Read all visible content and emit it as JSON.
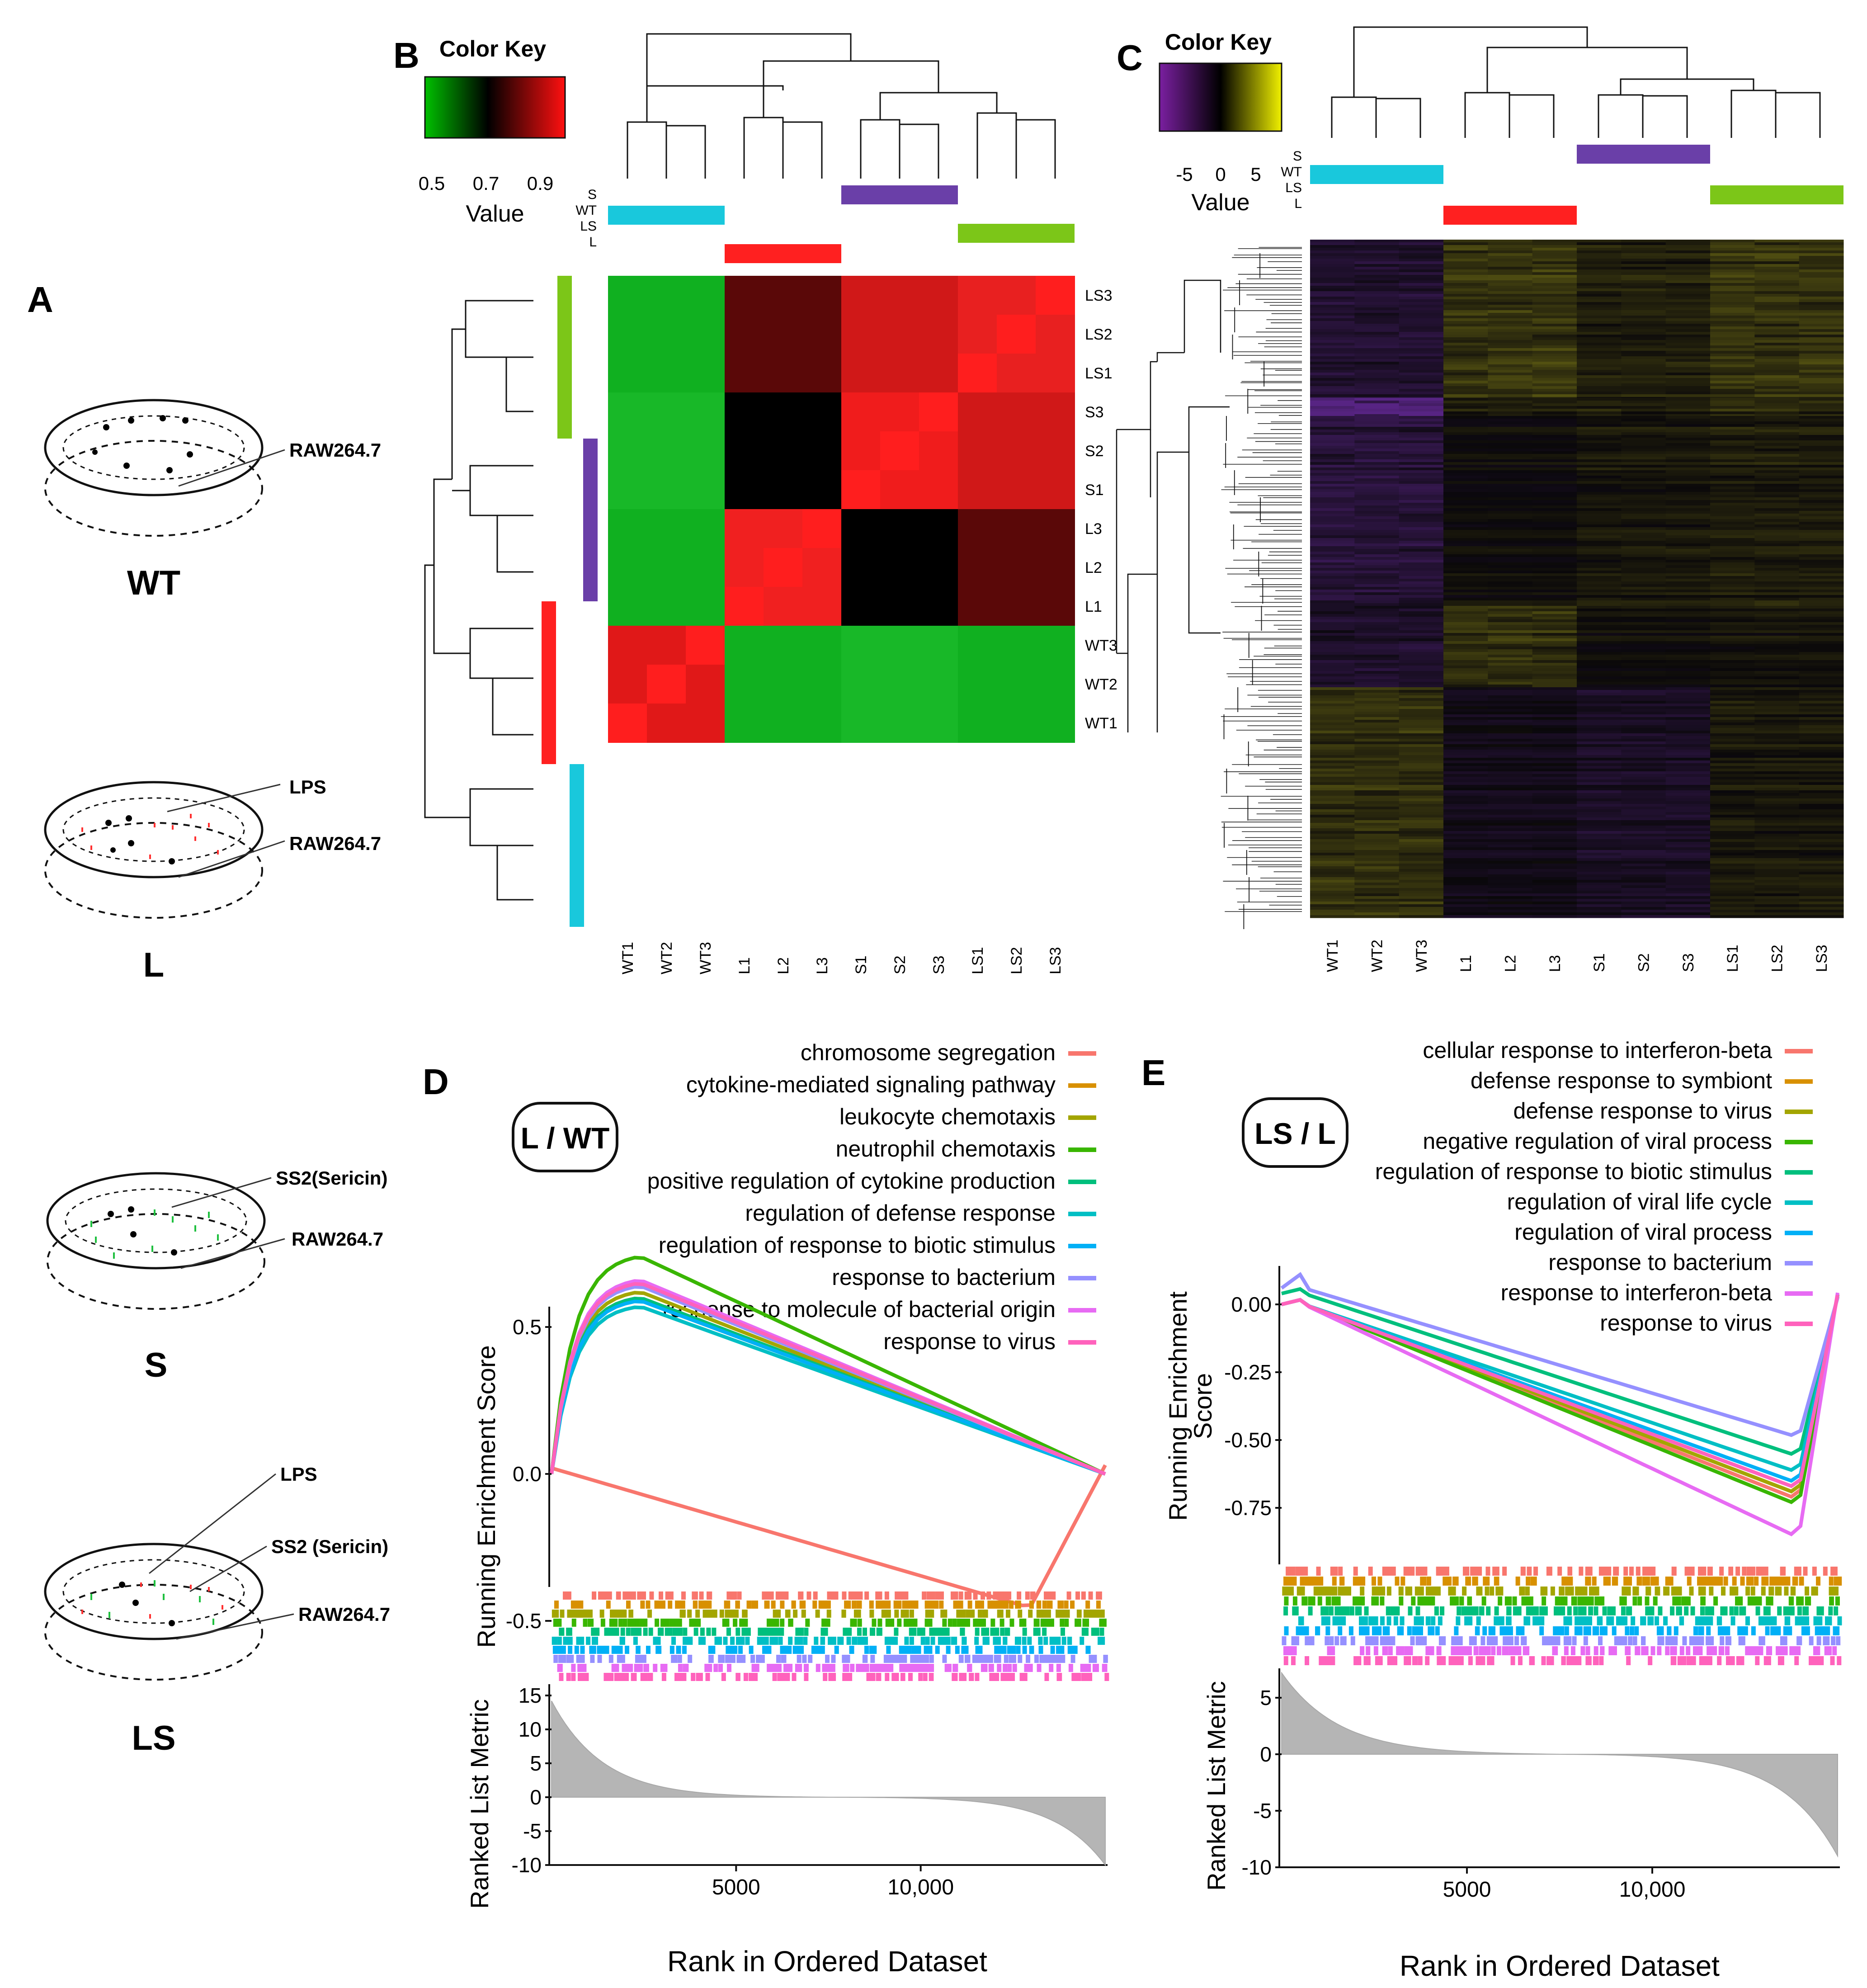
{
  "panels": {
    "A": {
      "label": "A",
      "dishes": [
        {
          "cond": "WT",
          "labels": [
            "RAW264.7"
          ]
        },
        {
          "cond": "L",
          "labels": [
            "LPS",
            "RAW264.7"
          ]
        },
        {
          "cond": "S",
          "labels": [
            "SS2(Sericin)",
            "RAW264.7"
          ]
        },
        {
          "cond": "LS",
          "labels": [
            "LPS",
            "SS2 (Sericin)",
            "RAW264.7"
          ]
        }
      ]
    },
    "B": {
      "label": "B",
      "key_title": "Color Key",
      "key_ticks": [
        "0.5",
        "0.7",
        "0.9"
      ],
      "key_value_label": "Value",
      "group_labels": [
        "S",
        "WT",
        "LS",
        "L"
      ],
      "samples": [
        "WT1",
        "WT2",
        "WT3",
        "L1",
        "L2",
        "L3",
        "S1",
        "S2",
        "S3",
        "LS1",
        "LS2",
        "LS3"
      ]
    },
    "C": {
      "label": "C",
      "key_title": "Color Key",
      "key_ticks": [
        "-5",
        "0",
        "5"
      ],
      "key_value_label": "Value",
      "group_labels": [
        "S",
        "WT",
        "LS",
        "L"
      ],
      "samples": [
        "WT1",
        "WT2",
        "WT3",
        "L1",
        "L2",
        "L3",
        "S1",
        "S2",
        "S3",
        "LS1",
        "LS2",
        "LS3"
      ]
    },
    "D": {
      "label": "D",
      "comparison": "L / WT",
      "y_label_es": "Running Enrichment Score",
      "y_label_rank": "Ranked List Metric",
      "x_label": "Rank in Ordered Dataset",
      "es_ticks": [
        "0.5",
        "0.0",
        "-0.5"
      ],
      "rank_ticks": [
        "15",
        "10",
        "5",
        "0",
        "-5",
        "-10"
      ],
      "x_ticks": [
        "5000",
        "10,000"
      ],
      "legend": [
        {
          "name": "chromosome segregation",
          "color": "#f8766d"
        },
        {
          "name": "cytokine-mediated signaling pathway",
          "color": "#d89000"
        },
        {
          "name": "leukocyte chemotaxis",
          "color": "#a3a500"
        },
        {
          "name": "neutrophil chemotaxis",
          "color": "#39b600"
        },
        {
          "name": "positive regulation of cytokine production",
          "color": "#00bf7d"
        },
        {
          "name": "regulation of defense response",
          "color": "#00bfc4"
        },
        {
          "name": "regulation of response to biotic stimulus",
          "color": "#00b0f6"
        },
        {
          "name": "response to bacterium",
          "color": "#9590ff"
        },
        {
          "name": "response to molecule of bacterial origin",
          "color": "#e76bf3"
        },
        {
          "name": "response to virus",
          "color": "#ff62bc"
        }
      ]
    },
    "E": {
      "label": "E",
      "comparison": "LS / L",
      "y_label_es": "Running Enrichment Score",
      "y_label_rank": "Ranked List Metric",
      "x_label": "Rank in Ordered Dataset",
      "es_ticks": [
        "0.00",
        "-0.25",
        "-0.50",
        "-0.75"
      ],
      "rank_ticks": [
        "5",
        "0",
        "-5",
        "-10"
      ],
      "x_ticks": [
        "5000",
        "10,000"
      ],
      "legend": [
        {
          "name": "cellular response to interferon-beta",
          "color": "#f8766d"
        },
        {
          "name": "defense response to symbiont",
          "color": "#d89000"
        },
        {
          "name": "defense response to virus",
          "color": "#a3a500"
        },
        {
          "name": "negative regulation of viral process",
          "color": "#39b600"
        },
        {
          "name": "regulation of response to biotic stimulus",
          "color": "#00bf7d"
        },
        {
          "name": "regulation of viral life cycle",
          "color": "#00bfc4"
        },
        {
          "name": "regulation of viral process",
          "color": "#00b0f6"
        },
        {
          "name": "response to bacterium",
          "color": "#9590ff"
        },
        {
          "name": "response to interferon-beta",
          "color": "#e76bf3"
        },
        {
          "name": "response to virus",
          "color": "#ff62bc"
        }
      ]
    }
  },
  "colors": {
    "WT": "#19c8dc",
    "L": "#ff2020",
    "S": "#6a3fa8",
    "LS": "#7cc618"
  }
}
